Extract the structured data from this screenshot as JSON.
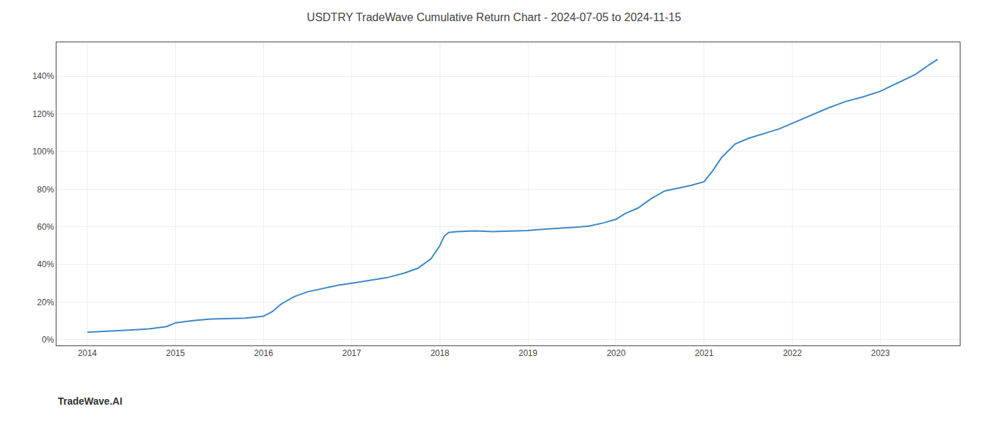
{
  "chart_data": {
    "type": "line",
    "title": "USDTRY TradeWave Cumulative Return Chart - 2024-07-05 to 2024-11-15",
    "annotations": [
      "TradeWave.AI"
    ],
    "color": "#3a87c8",
    "x": [
      2014.0,
      2014.15,
      2014.3,
      2014.5,
      2014.7,
      2014.9,
      2015.0,
      2015.2,
      2015.4,
      2015.6,
      2015.8,
      2016.0,
      2016.1,
      2016.2,
      2016.35,
      2016.5,
      2016.7,
      2016.85,
      2017.0,
      2017.2,
      2017.4,
      2017.6,
      2017.75,
      2017.9,
      2018.0,
      2018.05,
      2018.1,
      2018.2,
      2018.4,
      2018.6,
      2018.8,
      2019.0,
      2019.1,
      2019.3,
      2019.5,
      2019.6,
      2019.7,
      2019.85,
      2020.0,
      2020.1,
      2020.25,
      2020.4,
      2020.55,
      2020.7,
      2020.85,
      2021.0,
      2021.1,
      2021.2,
      2021.35,
      2021.5,
      2021.7,
      2021.85,
      2022.0,
      2022.2,
      2022.4,
      2022.6,
      2022.8,
      2023.0,
      2023.2,
      2023.4,
      2023.55,
      2023.65
    ],
    "values": [
      4.0,
      4.3,
      4.7,
      5.2,
      5.8,
      7.0,
      9.0,
      10.2,
      11.0,
      11.3,
      11.5,
      12.5,
      15.0,
      19.0,
      23.0,
      25.5,
      27.5,
      29.0,
      30.0,
      31.5,
      33.0,
      35.5,
      38.0,
      43.0,
      50.0,
      55.0,
      57.0,
      57.5,
      57.8,
      57.5,
      57.8,
      58.0,
      58.5,
      59.0,
      59.5,
      60.0,
      60.5,
      62.0,
      64.0,
      67.0,
      70.0,
      75.0,
      79.0,
      80.5,
      82.0,
      84.0,
      90.0,
      97.0,
      104.0,
      107.0,
      110.0,
      112.0,
      115.0,
      119.0,
      123.0,
      126.5,
      129.0,
      132.0,
      136.5,
      141.0,
      146.0,
      149.0
    ],
    "xlim": [
      2013.65,
      2023.9
    ],
    "xticks": [
      2014,
      2015,
      2016,
      2017,
      2018,
      2019,
      2020,
      2021,
      2022,
      2023
    ],
    "ylim": [
      -3,
      158
    ],
    "yticks": [
      {
        "value": 0,
        "label": "0%"
      },
      {
        "value": 20,
        "label": "20%"
      },
      {
        "value": 40,
        "label": "40%"
      },
      {
        "value": 60,
        "label": "60%"
      },
      {
        "value": 80,
        "label": "80%"
      },
      {
        "value": 100,
        "label": "100%"
      },
      {
        "value": 120,
        "label": "120%"
      },
      {
        "value": 140,
        "label": "140%"
      }
    ],
    "grid": true
  }
}
